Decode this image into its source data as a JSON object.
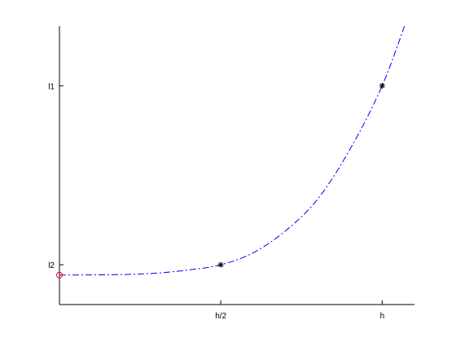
{
  "chart_data": {
    "type": "line",
    "xlim": [
      0,
      1.1
    ],
    "ylim": [
      0,
      1.4
    ],
    "x_ticks": [
      {
        "value": 0.5,
        "label": "h/2"
      },
      {
        "value": 1.0,
        "label": "h"
      }
    ],
    "y_ticks": [
      {
        "value": 0.2,
        "label": "l2"
      },
      {
        "value": 1.1,
        "label": "l1"
      }
    ],
    "grid": false,
    "box": "left-and-bottom",
    "series": [
      {
        "style": "dash-dot",
        "color": "#0000ff",
        "x": [
          0,
          0.1,
          0.2,
          0.3,
          0.4,
          0.5,
          0.6,
          0.7,
          0.8,
          0.9,
          1.0,
          1.08
        ],
        "y": [
          0.148,
          0.149,
          0.151,
          0.158,
          0.174,
          0.2,
          0.26,
          0.37,
          0.53,
          0.78,
          1.1,
          1.45
        ]
      }
    ],
    "markers": [
      {
        "x": 0,
        "y": 0.148,
        "symbol": "circle",
        "color": "#ff0000"
      },
      {
        "x": 0.5,
        "y": 0.2,
        "symbol": "asterisk",
        "color": "#000000"
      },
      {
        "x": 1.0,
        "y": 1.1,
        "symbol": "asterisk",
        "color": "#000000"
      }
    ]
  }
}
